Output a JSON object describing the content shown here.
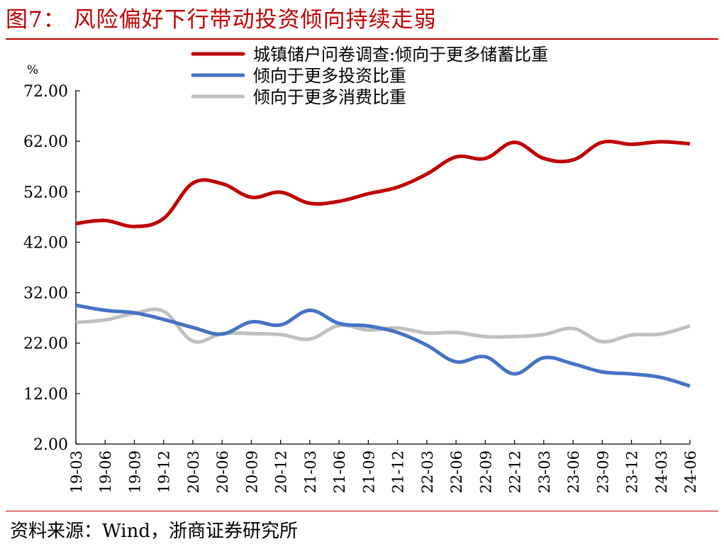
{
  "figure": {
    "title": "图7：  风险偏好下行带动投资倾向持续走弱",
    "source": "资料来源：Wind，浙商证券研究所"
  },
  "colors": {
    "title": "#c00000",
    "series": [
      "#c00000",
      "#4472c4",
      "#bfbfbf"
    ]
  },
  "chart_data": {
    "type": "line",
    "ylabel": "%",
    "ylim": [
      2,
      72
    ],
    "yticks": [
      "72.00",
      "62.00",
      "52.00",
      "42.00",
      "32.00",
      "22.00",
      "12.00",
      "2.00"
    ],
    "x": [
      "19-03",
      "19-06",
      "19-09",
      "19-12",
      "20-03",
      "20-06",
      "20-09",
      "20-12",
      "21-03",
      "21-06",
      "21-09",
      "21-12",
      "22-03",
      "22-06",
      "22-09",
      "22-12",
      "23-03",
      "23-06",
      "23-09",
      "23-12",
      "24-03",
      "24-06"
    ],
    "legend_position": "top-right",
    "grid": false,
    "series": [
      {
        "name": "城镇储户问卷调查:倾向于更多储蓄比重",
        "values": [
          45.7,
          46.3,
          45.1,
          46.7,
          53.7,
          53.6,
          50.9,
          51.9,
          49.7,
          50.1,
          51.6,
          52.9,
          55.5,
          58.9,
          58.6,
          61.8,
          58.6,
          58.3,
          61.8,
          61.4,
          61.9,
          61.5
        ]
      },
      {
        "name": "倾向于更多投资比重",
        "values": [
          29.5,
          28.5,
          28.0,
          26.7,
          25.1,
          23.8,
          26.2,
          25.6,
          28.5,
          25.9,
          25.4,
          24.1,
          21.6,
          18.3,
          19.3,
          15.9,
          19.1,
          17.9,
          16.3,
          15.9,
          15.2,
          13.5
        ]
      },
      {
        "name": "倾向于更多消费比重",
        "values": [
          26.1,
          26.6,
          27.9,
          28.3,
          22.4,
          23.9,
          23.9,
          23.7,
          22.8,
          25.5,
          24.6,
          25.0,
          24.0,
          24.1,
          23.3,
          23.3,
          23.7,
          24.9,
          22.3,
          23.6,
          23.8,
          25.4
        ]
      }
    ]
  }
}
